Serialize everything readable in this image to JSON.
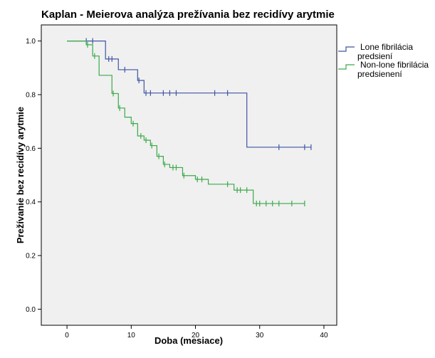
{
  "chart_data": {
    "type": "line",
    "title": "Kaplan - Meierova analýza prežívania bez recidívy arytmie",
    "xlabel": "Doba (mesiace)",
    "ylabel": "Prežívanie bez recidívy arytmie",
    "xlim": [
      -4,
      42
    ],
    "ylim": [
      -0.06,
      1.06
    ],
    "x_ticks": [
      0,
      10,
      20,
      30,
      40
    ],
    "y_ticks": [
      0.0,
      0.2,
      0.4,
      0.6,
      0.8,
      1.0
    ],
    "x_tick_labels": [
      "0",
      "10",
      "20",
      "30",
      "40"
    ],
    "y_tick_labels": [
      "0.0",
      "0.2",
      "0.4",
      "0.6",
      "0.8",
      "1.0"
    ],
    "grid": false,
    "legend_position": "right",
    "background_color": "#f0f0f0",
    "series": [
      {
        "name_lines": [
          "Lone fibrilácia",
          "predsiení"
        ],
        "color": "#3f55a4",
        "steps": [
          [
            0,
            1.0
          ],
          [
            6,
            0.933
          ],
          [
            8,
            0.893
          ],
          [
            11,
            0.853
          ],
          [
            12,
            0.806
          ],
          [
            28,
            0.604
          ],
          [
            38,
            0.604
          ]
        ],
        "censored": [
          [
            3,
            1.0
          ],
          [
            4,
            1.0
          ],
          [
            6.5,
            0.933
          ],
          [
            7,
            0.933
          ],
          [
            9,
            0.893
          ],
          [
            11.2,
            0.853
          ],
          [
            12.3,
            0.806
          ],
          [
            13,
            0.806
          ],
          [
            15,
            0.806
          ],
          [
            16,
            0.806
          ],
          [
            17,
            0.806
          ],
          [
            23,
            0.806
          ],
          [
            25,
            0.806
          ],
          [
            33,
            0.604
          ],
          [
            37,
            0.604
          ],
          [
            38,
            0.604
          ]
        ]
      },
      {
        "name_lines": [
          "Non-lone fibrilácia",
          "predsienení"
        ],
        "color": "#3aaa4a",
        "steps": [
          [
            0,
            1.0
          ],
          [
            3,
            0.986
          ],
          [
            4,
            0.944
          ],
          [
            5,
            0.872
          ],
          [
            7,
            0.804
          ],
          [
            8,
            0.75
          ],
          [
            9,
            0.716
          ],
          [
            10,
            0.692
          ],
          [
            11,
            0.646
          ],
          [
            12,
            0.63
          ],
          [
            13,
            0.61
          ],
          [
            14,
            0.57
          ],
          [
            15,
            0.54
          ],
          [
            16,
            0.528
          ],
          [
            18,
            0.498
          ],
          [
            20,
            0.484
          ],
          [
            22,
            0.466
          ],
          [
            26,
            0.444
          ],
          [
            29,
            0.394
          ],
          [
            37,
            0.394
          ]
        ],
        "censored": [
          [
            3.2,
            0.986
          ],
          [
            4.3,
            0.944
          ],
          [
            7.2,
            0.804
          ],
          [
            8.2,
            0.75
          ],
          [
            10.3,
            0.692
          ],
          [
            11.5,
            0.646
          ],
          [
            12.3,
            0.63
          ],
          [
            13.2,
            0.61
          ],
          [
            14.3,
            0.57
          ],
          [
            15.2,
            0.54
          ],
          [
            16.5,
            0.528
          ],
          [
            17,
            0.528
          ],
          [
            18.2,
            0.498
          ],
          [
            20.3,
            0.484
          ],
          [
            21,
            0.484
          ],
          [
            25,
            0.466
          ],
          [
            26.5,
            0.444
          ],
          [
            27,
            0.444
          ],
          [
            28,
            0.444
          ],
          [
            29.5,
            0.394
          ],
          [
            30,
            0.394
          ],
          [
            31,
            0.394
          ],
          [
            32,
            0.394
          ],
          [
            33,
            0.394
          ],
          [
            35,
            0.394
          ],
          [
            37,
            0.394
          ]
        ]
      }
    ]
  }
}
